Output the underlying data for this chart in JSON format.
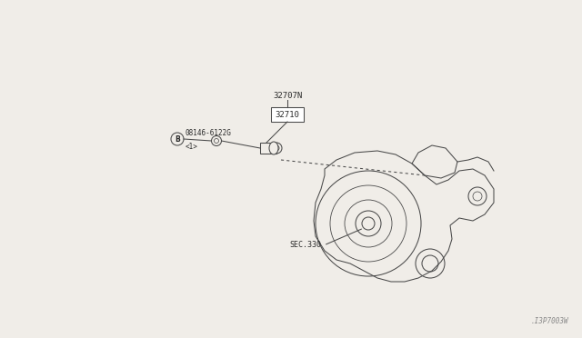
{
  "bg_color": "#f0ede8",
  "line_color": "#4a4a4a",
  "text_color": "#2a2a2a",
  "watermark": ".I3P7003W",
  "label_32707N": "32707N",
  "label_32710": "32710",
  "label_bolt": "08146-6122G",
  "label_bolt_sub": "<1>",
  "label_sec": "SEC.330",
  "label_B": "B",
  "fig_width": 6.4,
  "fig_height": 3.72,
  "dpi": 100
}
